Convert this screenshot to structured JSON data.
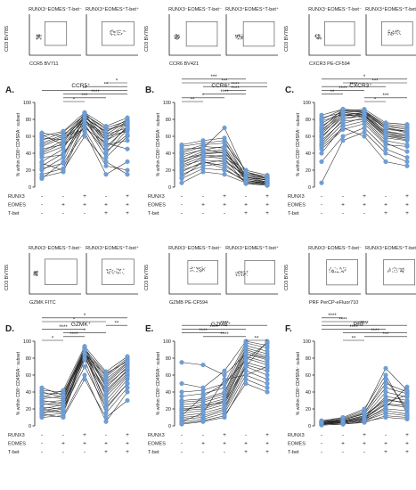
{
  "colors": {
    "points": "#6f9fd6",
    "lines": "#222222"
  },
  "row_labels": {
    "a": "RUNX3",
    "b": "EOMES",
    "c": "T-bet"
  },
  "ylabel": "% within CD8⁺CD45RA⁻ subset",
  "flow_y_label": "CD3 BV785",
  "condition_signs": [
    [
      "-",
      "-",
      "-"
    ],
    [
      "-",
      "+",
      "-"
    ],
    [
      "+",
      "+",
      "-"
    ],
    [
      "-",
      "+",
      "+"
    ],
    [
      "+",
      "+",
      "+"
    ]
  ],
  "chart_data": [
    {
      "type": "line",
      "panel": "A.",
      "marker": "CCR5⁺",
      "xlabel": "CCR5 BV711",
      "gate_titles": [
        "RUNX3⁻EOMES⁻T-bet⁻",
        "RUNX3⁺EOMES⁺T-bet⁺"
      ],
      "ylim": [
        0,
        100
      ],
      "yticks": [
        0,
        20,
        40,
        60,
        80,
        100
      ],
      "brackets": [
        {
          "from": 1,
          "to": 2,
          "label": "*"
        },
        {
          "from": 1,
          "to": 3,
          "label": "***"
        },
        {
          "from": 1,
          "to": 4,
          "label": "****"
        },
        {
          "from": 0,
          "to": 4,
          "label": "**"
        },
        {
          "from": 2,
          "to": 4,
          "label": "**"
        },
        {
          "from": 3,
          "to": 4,
          "label": "*"
        }
      ],
      "series": [
        [
          10,
          30,
          82,
          40,
          68
        ],
        [
          12,
          18,
          75,
          35,
          60
        ],
        [
          15,
          22,
          78,
          45,
          72
        ],
        [
          20,
          35,
          85,
          50,
          55
        ],
        [
          22,
          28,
          65,
          15,
          30
        ],
        [
          25,
          40,
          72,
          42,
          62
        ],
        [
          30,
          45,
          86,
          55,
          74
        ],
        [
          35,
          38,
          80,
          48,
          70
        ],
        [
          38,
          48,
          76,
          60,
          66
        ],
        [
          40,
          52,
          88,
          62,
          78
        ],
        [
          42,
          55,
          84,
          58,
          76
        ],
        [
          45,
          50,
          70,
          52,
          45
        ],
        [
          48,
          58,
          82,
          65,
          80
        ],
        [
          50,
          60,
          86,
          68,
          74
        ],
        [
          52,
          62,
          80,
          55,
          68
        ],
        [
          55,
          65,
          85,
          70,
          78
        ],
        [
          58,
          56,
          78,
          62,
          70
        ],
        [
          60,
          66,
          88,
          72,
          82
        ],
        [
          62,
          50,
          82,
          66,
          76
        ],
        [
          64,
          60,
          68,
          25,
          20
        ],
        [
          28,
          20,
          60,
          30,
          15
        ]
      ]
    },
    {
      "type": "line",
      "panel": "B.",
      "marker": "CCR6⁺",
      "xlabel": "CCR6 BV421",
      "gate_titles": [
        "RUNX3⁻EOMES⁻T-bet⁻",
        "RUNX3⁺EOMES⁺T-bet⁺"
      ],
      "ylim": [
        0,
        100
      ],
      "yticks": [
        0,
        20,
        40,
        60,
        80,
        100
      ],
      "brackets": [
        {
          "from": 0,
          "to": 1,
          "label": "**"
        },
        {
          "from": 0,
          "to": 2,
          "label": "*"
        },
        {
          "from": 1,
          "to": 3,
          "label": "****"
        },
        {
          "from": 2,
          "to": 3,
          "label": "****"
        },
        {
          "from": 1,
          "to": 4,
          "label": "****"
        },
        {
          "from": 0,
          "to": 4,
          "label": "***"
        },
        {
          "from": 0,
          "to": 3,
          "label": "***"
        }
      ],
      "series": [
        [
          5,
          18,
          15,
          5,
          2
        ],
        [
          10,
          22,
          20,
          8,
          3
        ],
        [
          15,
          25,
          28,
          6,
          4
        ],
        [
          18,
          30,
          25,
          10,
          5
        ],
        [
          20,
          28,
          32,
          12,
          6
        ],
        [
          22,
          35,
          38,
          8,
          4
        ],
        [
          25,
          32,
          30,
          14,
          8
        ],
        [
          28,
          40,
          42,
          10,
          6
        ],
        [
          30,
          38,
          36,
          16,
          10
        ],
        [
          32,
          42,
          44,
          12,
          8
        ],
        [
          35,
          45,
          40,
          18,
          12
        ],
        [
          38,
          44,
          48,
          14,
          10
        ],
        [
          40,
          48,
          46,
          8,
          5
        ],
        [
          42,
          50,
          52,
          20,
          14
        ],
        [
          45,
          46,
          70,
          16,
          12
        ],
        [
          48,
          52,
          55,
          12,
          8
        ],
        [
          50,
          55,
          58,
          18,
          10
        ],
        [
          26,
          36,
          34,
          4,
          2
        ],
        [
          12,
          30,
          22,
          6,
          3
        ],
        [
          33,
          39,
          41,
          11,
          9
        ]
      ]
    },
    {
      "type": "line",
      "panel": "C.",
      "marker": "CXCR3⁺",
      "xlabel": "CXCR3 PE-CF594",
      "gate_titles": [
        "RUNX3⁻EOMES⁻T-bet⁻",
        "RUNX3⁺EOMES⁺T-bet⁺"
      ],
      "ylim": [
        0,
        100
      ],
      "yticks": [
        0,
        20,
        40,
        60,
        80,
        100
      ],
      "brackets": [
        {
          "from": 2,
          "to": 3,
          "label": "*"
        },
        {
          "from": 2,
          "to": 4,
          "label": "***"
        },
        {
          "from": 0,
          "to": 1,
          "label": "**"
        },
        {
          "from": 0,
          "to": 2,
          "label": "****"
        },
        {
          "from": 0,
          "to": 3,
          "label": "****"
        },
        {
          "from": 1,
          "to": 4,
          "label": "***"
        },
        {
          "from": 0,
          "to": 4,
          "label": "*"
        }
      ],
      "series": [
        [
          5,
          55,
          65,
          40,
          30
        ],
        [
          30,
          60,
          70,
          45,
          35
        ],
        [
          40,
          72,
          78,
          52,
          42
        ],
        [
          45,
          68,
          75,
          50,
          48
        ],
        [
          50,
          75,
          82,
          58,
          55
        ],
        [
          52,
          80,
          85,
          62,
          60
        ],
        [
          55,
          78,
          80,
          55,
          50
        ],
        [
          58,
          85,
          88,
          65,
          62
        ],
        [
          60,
          82,
          84,
          60,
          58
        ],
        [
          62,
          88,
          90,
          68,
          66
        ],
        [
          65,
          84,
          86,
          70,
          64
        ],
        [
          66,
          90,
          88,
          72,
          70
        ],
        [
          68,
          86,
          82,
          60,
          56
        ],
        [
          70,
          92,
          90,
          74,
          72
        ],
        [
          72,
          88,
          85,
          66,
          62
        ],
        [
          75,
          90,
          92,
          76,
          74
        ],
        [
          78,
          86,
          84,
          64,
          60
        ],
        [
          80,
          92,
          88,
          70,
          66
        ],
        [
          82,
          88,
          86,
          62,
          58
        ],
        [
          85,
          92,
          90,
          72,
          68
        ],
        [
          48,
          70,
          60,
          30,
          25
        ]
      ]
    },
    {
      "type": "line",
      "panel": "D.",
      "marker": "GZMK⁺",
      "xlabel": "GZMK FITC",
      "gate_titles": [
        "RUNX3⁻EOMES⁻T-bet⁻",
        "RUNX3⁺EOMES⁺T-bet⁺"
      ],
      "ylim": [
        0,
        100
      ],
      "yticks": [
        0,
        20,
        40,
        60,
        80,
        100
      ],
      "brackets": [
        {
          "from": 0,
          "to": 1,
          "label": "*"
        },
        {
          "from": 1,
          "to": 2,
          "label": "****"
        },
        {
          "from": 1,
          "to": 3,
          "label": "*"
        },
        {
          "from": 0,
          "to": 2,
          "label": "****"
        },
        {
          "from": 3,
          "to": 4,
          "label": "**"
        },
        {
          "from": 0,
          "to": 3,
          "label": "*"
        },
        {
          "from": 0,
          "to": 4,
          "label": "*"
        }
      ],
      "series": [
        [
          10,
          12,
          60,
          5,
          40
        ],
        [
          12,
          15,
          85,
          20,
          50
        ],
        [
          15,
          18,
          88,
          25,
          55
        ],
        [
          18,
          22,
          90,
          35,
          60
        ],
        [
          20,
          25,
          86,
          40,
          65
        ],
        [
          22,
          20,
          82,
          30,
          58
        ],
        [
          25,
          28,
          92,
          45,
          70
        ],
        [
          28,
          30,
          88,
          50,
          72
        ],
        [
          30,
          26,
          84,
          42,
          66
        ],
        [
          32,
          35,
          90,
          55,
          75
        ],
        [
          35,
          32,
          86,
          48,
          68
        ],
        [
          38,
          38,
          92,
          58,
          78
        ],
        [
          40,
          34,
          88,
          52,
          74
        ],
        [
          42,
          40,
          85,
          60,
          80
        ],
        [
          45,
          36,
          90,
          62,
          76
        ],
        [
          20,
          15,
          78,
          15,
          45
        ],
        [
          26,
          24,
          80,
          38,
          62
        ],
        [
          14,
          10,
          55,
          10,
          30
        ],
        [
          34,
          42,
          94,
          64,
          82
        ],
        [
          16,
          20,
          70,
          22,
          50
        ]
      ]
    },
    {
      "type": "line",
      "panel": "E.",
      "marker": "GZMB⁺",
      "xlabel": "GZMB PE-CF594",
      "gate_titles": [
        "RUNX3⁻EOMES⁻T-bet⁻",
        "RUNX3⁺EOMES⁺T-bet⁺"
      ],
      "ylim": [
        0,
        100
      ],
      "yticks": [
        0,
        20,
        40,
        60,
        80,
        100
      ],
      "brackets": [
        {
          "from": 3,
          "to": 4,
          "label": "**"
        },
        {
          "from": 1,
          "to": 3,
          "label": "****"
        },
        {
          "from": 0,
          "to": 2,
          "label": "****"
        },
        {
          "from": 0,
          "to": 3,
          "label": "****"
        },
        {
          "from": 0,
          "to": 4,
          "label": "****"
        }
      ],
      "series": [
        [
          2,
          5,
          10,
          55,
          45
        ],
        [
          5,
          8,
          15,
          60,
          50
        ],
        [
          8,
          10,
          18,
          65,
          55
        ],
        [
          10,
          12,
          20,
          70,
          60
        ],
        [
          12,
          15,
          22,
          72,
          65
        ],
        [
          15,
          18,
          25,
          75,
          68
        ],
        [
          18,
          20,
          28,
          80,
          72
        ],
        [
          20,
          22,
          30,
          82,
          75
        ],
        [
          22,
          25,
          32,
          85,
          78
        ],
        [
          25,
          28,
          35,
          88,
          80
        ],
        [
          28,
          30,
          38,
          90,
          82
        ],
        [
          30,
          32,
          40,
          92,
          85
        ],
        [
          35,
          38,
          45,
          95,
          88
        ],
        [
          40,
          42,
          50,
          98,
          92
        ],
        [
          75,
          72,
          60,
          85,
          80
        ],
        [
          5,
          15,
          55,
          60,
          70
        ],
        [
          12,
          35,
          50,
          78,
          98
        ],
        [
          18,
          24,
          28,
          70,
          100
        ],
        [
          3,
          6,
          12,
          50,
          40
        ],
        [
          50,
          45,
          65,
          100,
          95
        ]
      ]
    },
    {
      "type": "line",
      "panel": "F.",
      "marker": "PRF⁺",
      "xlabel": "PRF PerCP-eFluor710",
      "gate_titles": [
        "RUNX3⁻EOMES⁻T-bet⁻",
        "RUNX3⁺EOMES⁺T-bet⁺"
      ],
      "ylim": [
        0,
        100
      ],
      "yticks": [
        0,
        20,
        40,
        60,
        80,
        100
      ],
      "brackets": [
        {
          "from": 1,
          "to": 2,
          "label": "**"
        },
        {
          "from": 2,
          "to": 4,
          "label": "***"
        },
        {
          "from": 1,
          "to": 4,
          "label": "****"
        },
        {
          "from": 0,
          "to": 3,
          "label": "****"
        },
        {
          "from": 0,
          "to": 4,
          "label": "****"
        },
        {
          "from": 0,
          "to": 2,
          "label": "****"
        },
        {
          "from": 0,
          "to": 1,
          "label": "****"
        }
      ],
      "series": [
        [
          1,
          2,
          5,
          10,
          8
        ],
        [
          2,
          3,
          6,
          15,
          12
        ],
        [
          3,
          4,
          8,
          20,
          18
        ],
        [
          4,
          5,
          10,
          25,
          22
        ],
        [
          5,
          6,
          12,
          30,
          28
        ],
        [
          2,
          4,
          9,
          35,
          30
        ],
        [
          3,
          5,
          11,
          40,
          34
        ],
        [
          4,
          7,
          14,
          45,
          38
        ],
        [
          5,
          8,
          16,
          50,
          40
        ],
        [
          6,
          9,
          18,
          68,
          42
        ],
        [
          2,
          3,
          7,
          22,
          46
        ],
        [
          3,
          4,
          9,
          28,
          36
        ],
        [
          4,
          6,
          12,
          32,
          26
        ],
        [
          5,
          7,
          15,
          55,
          20
        ],
        [
          6,
          10,
          20,
          60,
          15
        ],
        [
          1,
          2,
          4,
          12,
          10
        ],
        [
          3,
          3,
          6,
          18,
          14
        ],
        [
          4,
          5,
          8,
          26,
          24
        ]
      ]
    }
  ]
}
